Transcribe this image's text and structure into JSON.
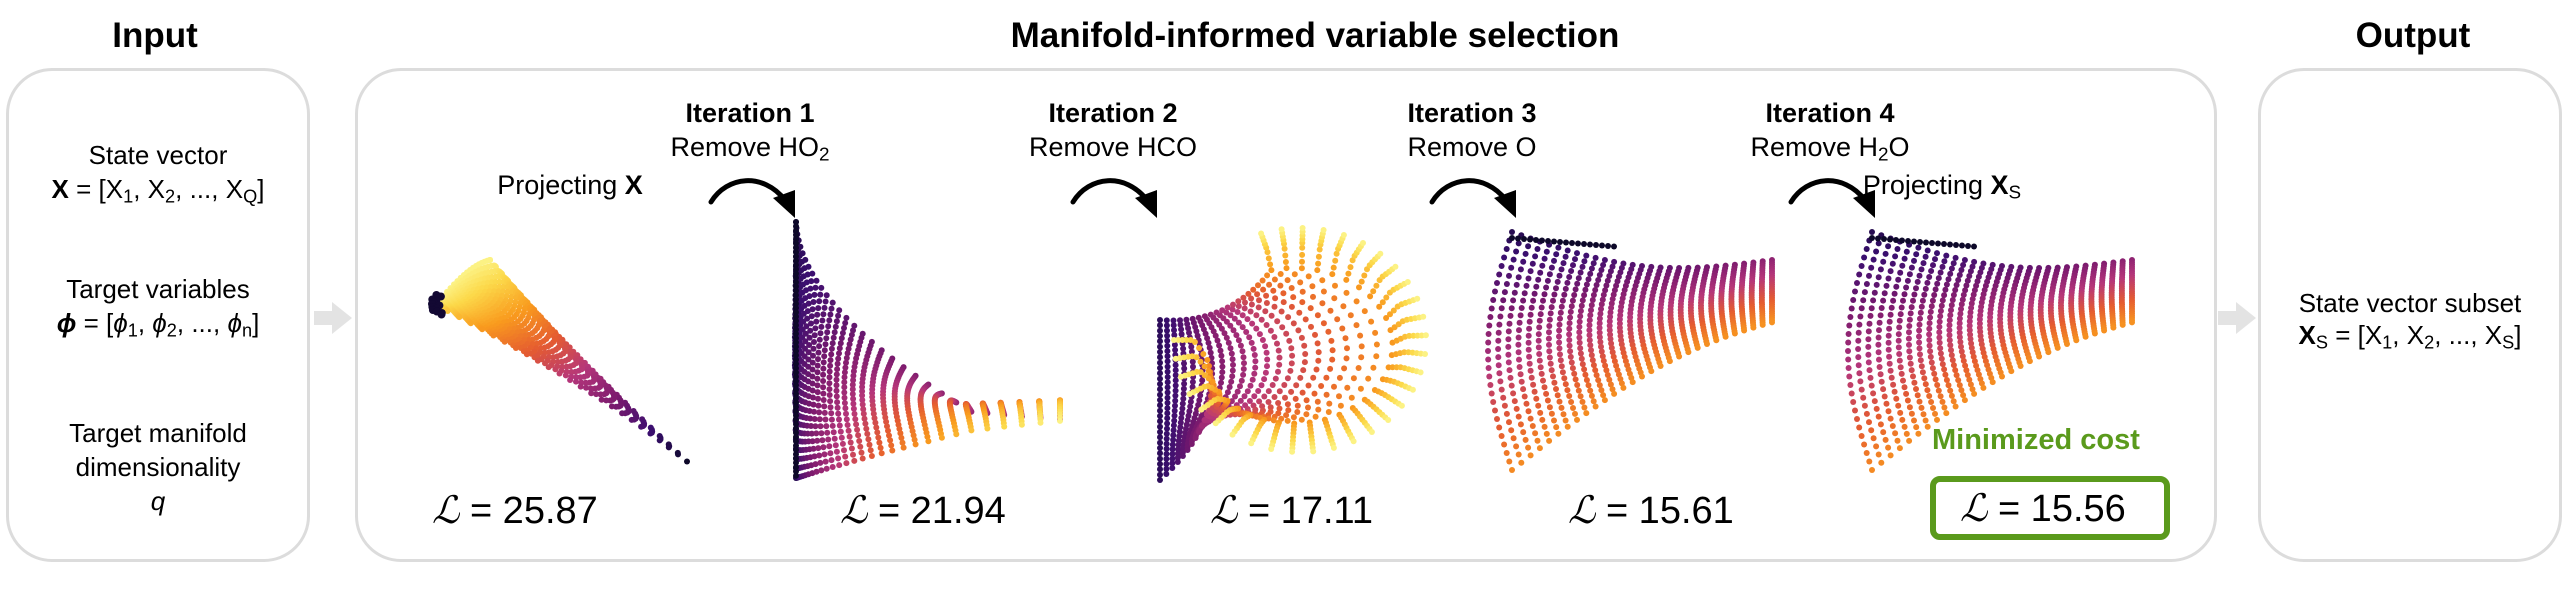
{
  "headings": {
    "input": "Input",
    "selection": "Manifold-informed variable selection",
    "output": "Output"
  },
  "input_panel": {
    "state_vector_label": "State vector",
    "state_vector_bold": "X",
    "state_vector_eq": " = [X",
    "state_vector_1": "1",
    "state_vector_mid": ", X",
    "state_vector_2": "2",
    "state_vector_dots": ", ..., X",
    "state_vector_Q": "Q",
    "state_vector_end": "]",
    "target_label": "Target variables",
    "target_phi": "ϕ",
    "target_eq": " = [",
    "target_phi1": "ϕ",
    "target_1": "1",
    "target_mid": ", ",
    "target_phi2": "ϕ",
    "target_2": "2",
    "target_dots": ", ..., ",
    "target_phin": "ϕ",
    "target_n": "n",
    "target_end": "]",
    "manifold_label_1": "Target manifold",
    "manifold_label_2": "dimensionality",
    "manifold_q": "q"
  },
  "selection": {
    "projecting_x_prefix": "Projecting ",
    "projecting_x_bold": "X",
    "projecting_xs_prefix": "Projecting ",
    "projecting_xs_bold": "X",
    "projecting_xs_sub": "S",
    "iterations": [
      {
        "title": "Iteration 1",
        "remove_prefix": "Remove HO",
        "remove_sub": "2",
        "remove_suffix": ""
      },
      {
        "title": "Iteration 2",
        "remove_prefix": "Remove HCO",
        "remove_sub": "",
        "remove_suffix": ""
      },
      {
        "title": "Iteration 3",
        "remove_prefix": "Remove O",
        "remove_sub": "",
        "remove_suffix": ""
      },
      {
        "title": "Iteration 4",
        "remove_prefix": "Remove H",
        "remove_sub": "2",
        "remove_suffix": "O"
      }
    ],
    "cost_symbol": "ℒ",
    "costs": [
      "= 25.87",
      "= 21.94",
      "= 17.11",
      "= 15.61",
      "= 15.56"
    ],
    "minimized_label": "Minimized cost"
  },
  "output_panel": {
    "label": "State vector subset",
    "xs_bold": "X",
    "xs_sub": "S",
    "eq": " = [X",
    "s1": "1",
    "mid": ", X",
    "s2": "2",
    "dots": ", ..., X",
    "sS": "S",
    "end": "]"
  },
  "colors": {
    "panel_border": "#dcdcdc",
    "arrow_gray": "#e0e0e0",
    "green": "#5a9a1c",
    "cmap": [
      "#0d0829",
      "#3b0f70",
      "#7b1a6e",
      "#b5367a",
      "#e55c30",
      "#f99b1e",
      "#fcd94a",
      "#fcffa4"
    ]
  }
}
